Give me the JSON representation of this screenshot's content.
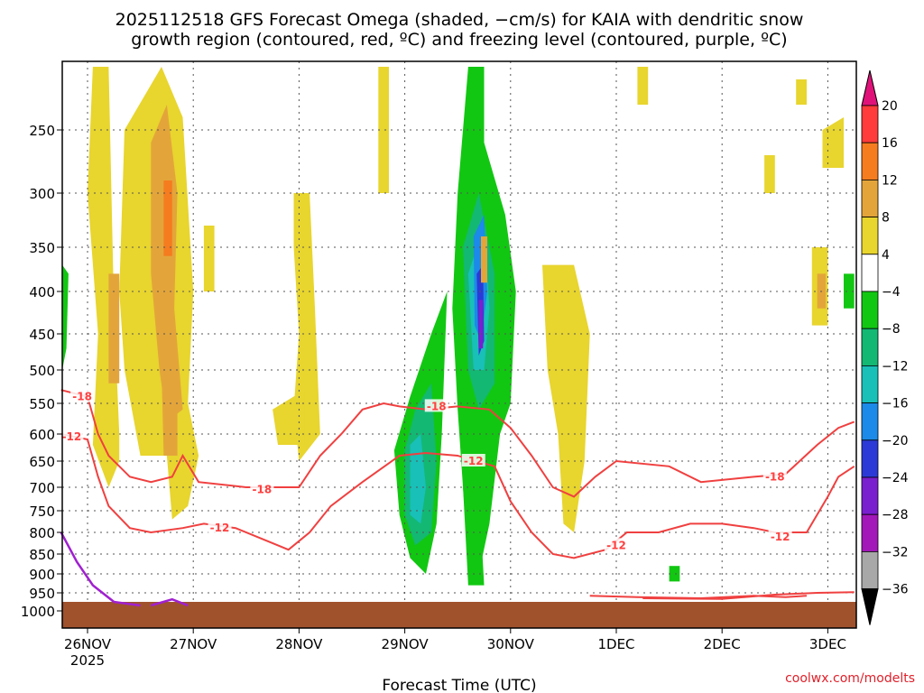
{
  "chart_data": {
    "type": "heatmap",
    "title_line1": "2025112518 GFS Forecast Omega (shaded, −cm/s) for KAIA with dendritic snow",
    "title_line2": "growth region (contoured, red, ºC) and freezing level (contoured, purple, ºC)",
    "xlabel": "Forecast Time (UTC)",
    "ylabel": "",
    "x_ticks": [
      "26NOV",
      "27NOV",
      "28NOV",
      "29NOV",
      "30NOV",
      "1DEC",
      "2DEC",
      "3DEC"
    ],
    "x_year_label": "2025",
    "xlim_days": [
      -0.25,
      7.25
    ],
    "y_ticks": [
      250,
      300,
      350,
      400,
      450,
      500,
      550,
      600,
      650,
      700,
      750,
      800,
      850,
      900,
      950,
      1000
    ],
    "ylim_hpa": [
      200,
      1050
    ],
    "surface_pressure_hpa": 990,
    "colorbar": {
      "labels": [
        "20",
        "16",
        "12",
        "8",
        "4",
        "−4",
        "−8",
        "−12",
        "−16",
        "−20",
        "−24",
        "−28",
        "−32",
        "−36"
      ],
      "colors": [
        "#ff3b3b",
        "#f57c1f",
        "#e3a53a",
        "#e8d52e",
        "#ffffff",
        "#12c712",
        "#13b873",
        "#18c0b8",
        "#1c8ae8",
        "#2b3ad6",
        "#7a1fcf",
        "#a218b8",
        "#a8a8a8"
      ],
      "top_color": "#e0127a",
      "bottom_color": "#000000"
    },
    "contour_labels": [
      "-18",
      "-12"
    ],
    "colors": {
      "dgz_contour": "#f04040",
      "freezing_contour": "#a020d0",
      "surface": "#a0522d"
    },
    "credit": "coolwx.com/modelts"
  }
}
